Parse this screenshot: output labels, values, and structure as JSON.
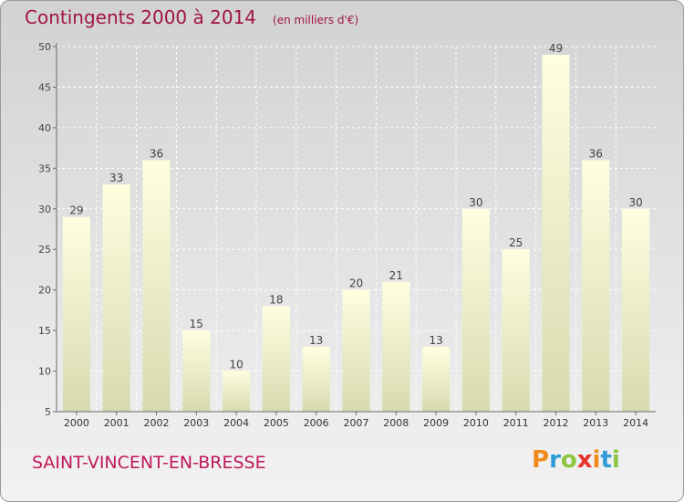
{
  "header": {
    "title": "Contingents 2000 à 2014",
    "unit": "(en milliers d'€)"
  },
  "footer": {
    "place": "SAINT-VINCENT-EN-BRESSE",
    "brand_logo": "Proxiti"
  },
  "colors": {
    "title": "#a01540",
    "place": "#c0185a",
    "bar_top": "#ffffe0",
    "bar_bottom": "#d9d9b0",
    "axis": "#6a6a6a",
    "grid": "#ffffff"
  },
  "chart_data": {
    "type": "bar",
    "title": "Contingents 2000 à 2014",
    "subtitle": "(en milliers d'€)",
    "categories": [
      "2000",
      "2001",
      "2002",
      "2003",
      "2004",
      "2005",
      "2006",
      "2007",
      "2008",
      "2009",
      "2010",
      "2011",
      "2012",
      "2013",
      "2014"
    ],
    "values": [
      29,
      33,
      36,
      15,
      10,
      18,
      13,
      20,
      21,
      13,
      30,
      25,
      49,
      36,
      30
    ],
    "ylim": [
      5,
      50
    ],
    "yticks": [
      5,
      10,
      15,
      20,
      25,
      30,
      35,
      40,
      45,
      50
    ],
    "grid": true,
    "data_labels": true
  }
}
